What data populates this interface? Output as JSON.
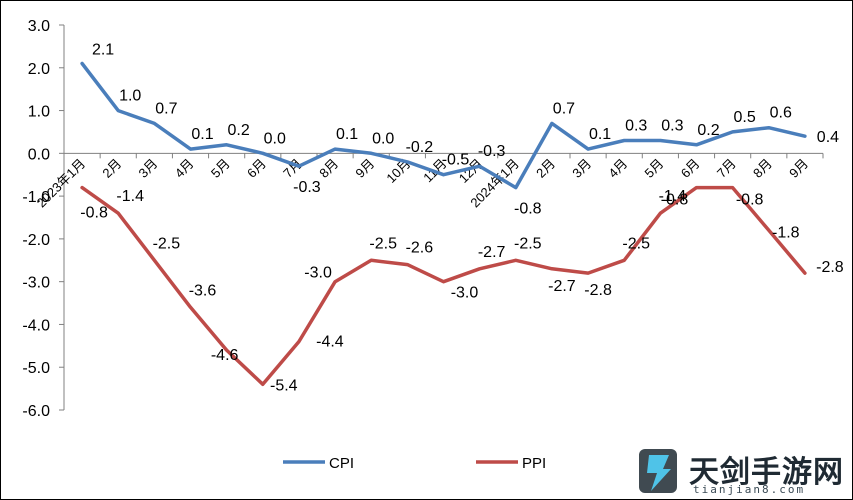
{
  "chart_data": {
    "type": "line",
    "categories": [
      "2023年1月",
      "2月",
      "3月",
      "4月",
      "5月",
      "6月",
      "7月",
      "8月",
      "9月",
      "10月",
      "11月",
      "12月",
      "2024年1月",
      "2月",
      "3月",
      "4月",
      "5月",
      "6月",
      "7月",
      "8月",
      "9月"
    ],
    "series": [
      {
        "name": "CPI",
        "color": "#4A7EBB",
        "values": [
          2.1,
          1.0,
          0.7,
          0.1,
          0.2,
          0.0,
          -0.3,
          0.1,
          0.0,
          -0.2,
          -0.5,
          -0.3,
          -0.8,
          0.7,
          0.1,
          0.3,
          0.3,
          0.2,
          0.5,
          0.6,
          0.4
        ],
        "labels": [
          "2.1",
          "1.0",
          "0.7",
          "0.1",
          "0.2",
          "0.0",
          "-0.3",
          "0.1",
          "0.0",
          "-0.2",
          "-0.5",
          "-0.3",
          "-0.8",
          "0.7",
          "0.1",
          "0.3",
          "0.3",
          "0.2",
          "0.5",
          "0.6",
          "0.4"
        ]
      },
      {
        "name": "PPI",
        "color": "#BE4B48",
        "values": [
          -0.8,
          -1.4,
          -2.5,
          -3.6,
          -4.6,
          -5.4,
          -4.4,
          -3.0,
          -2.5,
          -2.6,
          -3.0,
          -2.7,
          -2.5,
          -2.7,
          -2.8,
          -2.5,
          -1.4,
          -0.8,
          -0.8,
          -1.8,
          -2.8
        ],
        "labels": [
          "-0.8",
          "-1.4",
          "-2.5",
          "-3.6",
          "-4.6",
          "-5.4",
          "-4.4",
          "-3.0",
          "-2.5",
          "-2.6",
          "-3.0",
          "-2.7",
          "-2.5",
          "-2.7",
          "-2.8",
          "-2.5",
          "-1.4",
          "-0.8",
          "-0.8",
          "-1.8",
          "-2.8"
        ]
      }
    ],
    "yticks": [
      "3.0",
      "2.0",
      "1.0",
      "0.0",
      "-1.0",
      "-2.0",
      "-3.0",
      "-4.0",
      "-5.0",
      "-6.0"
    ],
    "ylim": [
      -6,
      3
    ],
    "grid": false,
    "legend": {
      "position": "bottom",
      "items": [
        "CPI",
        "PPI"
      ]
    }
  },
  "watermark": {
    "text_cn": "天剑手游网",
    "text_en": "tianjian8.com",
    "icon": "logo-icon"
  }
}
